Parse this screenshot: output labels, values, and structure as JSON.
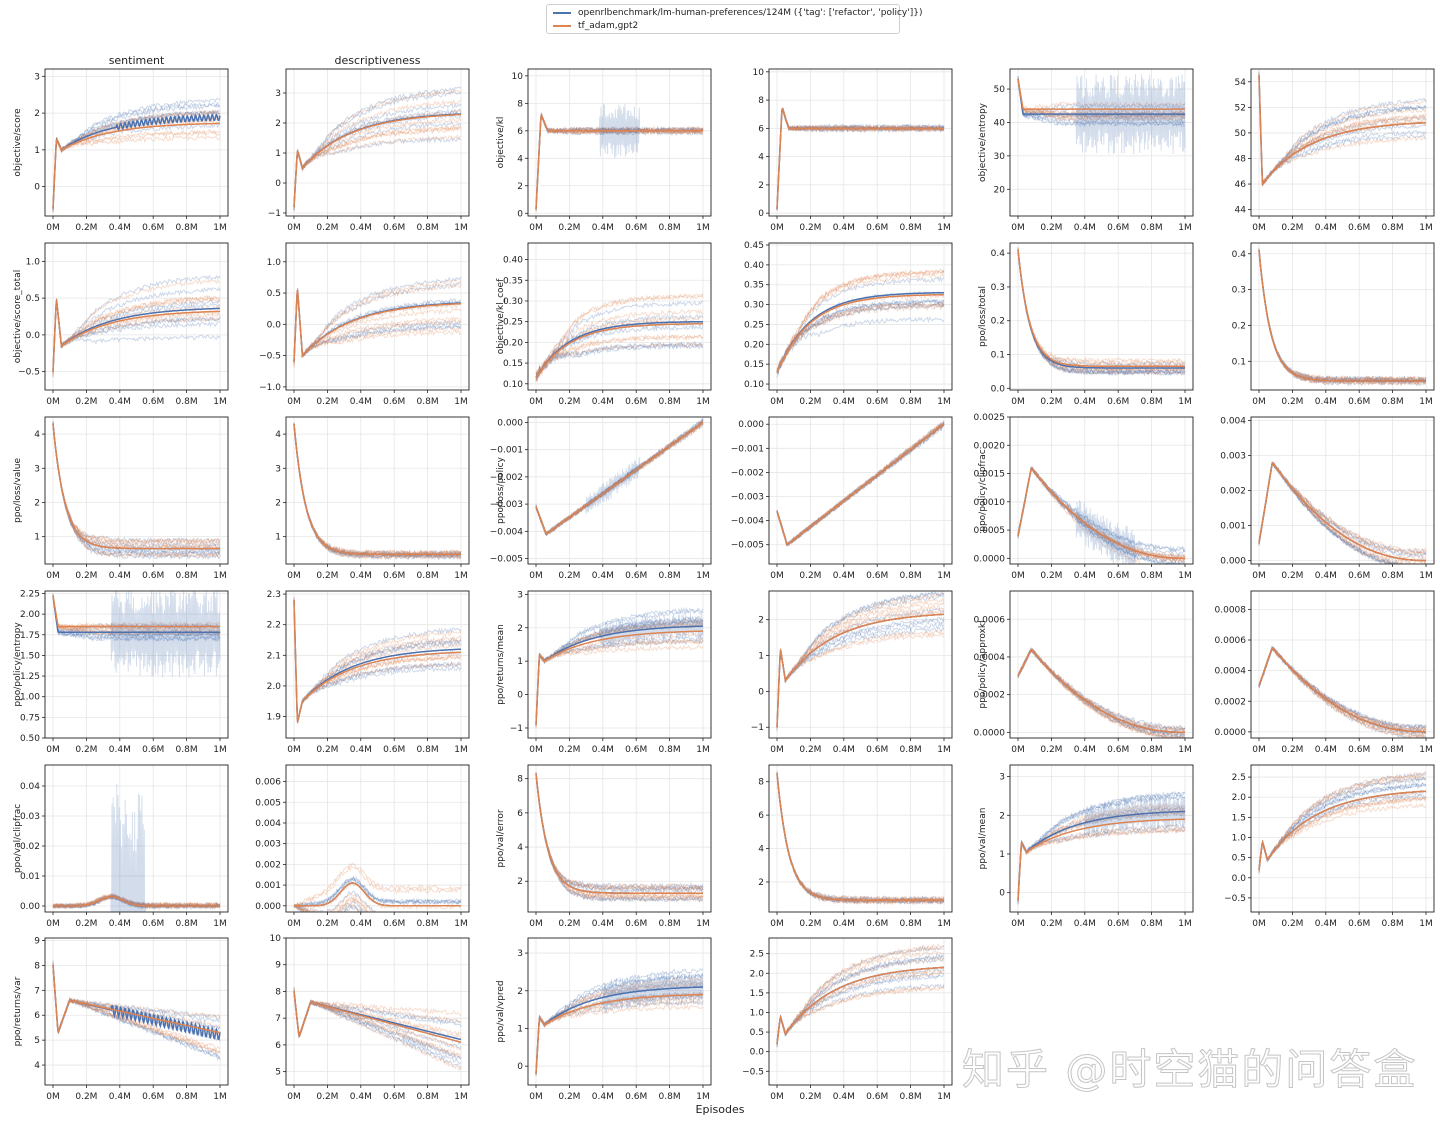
{
  "legend": [
    {
      "label": "openrlbenchmark/lm-human-preferences/124M ({'tag': ['refactor', 'policy']})",
      "color": "#4c72b0"
    },
    {
      "label": "tf_adam,gpt2",
      "color": "#dd8452"
    }
  ],
  "watermark": "知乎 @时空猫的问答盒",
  "colors": {
    "blue": "#4c72b0",
    "orange": "#dd8452",
    "grid": "#e6e6e6"
  },
  "chart_data": {
    "type": "line",
    "xlabel": "Episodes",
    "x_ticks": [
      "0M",
      "0.2M",
      "0.4M",
      "0.6M",
      "0.8M",
      "1M"
    ],
    "x_tick_values": [
      0,
      0.2,
      0.4,
      0.6,
      0.8,
      1.0
    ],
    "xlim": [
      0,
      1.0
    ],
    "grid": true,
    "legend_position": "top-center",
    "series_names": [
      "openrlbenchmark/lm-human-preferences/124M ({'tag': ['refactor', 'policy']})",
      "tf_adam,gpt2"
    ],
    "panels": [
      {
        "title": "sentiment",
        "ylabel": "objective/score",
        "ylim": [
          -0.8,
          3.2
        ],
        "yticks": [
          "0",
          "1",
          "2",
          "3"
        ],
        "ytick_values": [
          0,
          1,
          2,
          3
        ],
        "shape": "rise",
        "start": -0.6,
        "peak": 1.3,
        "dip": 1.0,
        "end_blue": 1.88,
        "end_orange": 1.72,
        "spread": 0.5,
        "blue_osc": 0.08,
        "osc_from": 0.38
      },
      {
        "title": "descriptiveness",
        "ylabel": "",
        "ylim": [
          -1.1,
          3.8
        ],
        "yticks": [
          "−1",
          "0",
          "1",
          "2",
          "3"
        ],
        "ytick_values": [
          -1,
          0,
          1,
          2,
          3
        ],
        "shape": "rise",
        "start": -0.8,
        "peak": 1.1,
        "dip": 0.5,
        "end_blue": 2.3,
        "end_orange": 2.28,
        "spread": 0.85
      },
      {
        "title": "",
        "ylabel": "objective/kl",
        "ylim": [
          -0.2,
          10.5
        ],
        "yticks": [
          "0",
          "2",
          "4",
          "6",
          "8",
          "10"
        ],
        "ytick_values": [
          0,
          2,
          4,
          6,
          8,
          10
        ],
        "shape": "spike_flat",
        "start": 0.3,
        "peak": 7.2,
        "end_blue": 6.0,
        "end_orange": 6.0,
        "spread": 0.15,
        "blue_noise": 2.0,
        "osc_from": 0.38,
        "osc_to": 0.62
      },
      {
        "title": "",
        "ylabel": "",
        "ylim": [
          -0.2,
          10.2
        ],
        "yticks": [
          "0",
          "2",
          "4",
          "6",
          "8",
          "10"
        ],
        "ytick_values": [
          0,
          2,
          4,
          6,
          8,
          10
        ],
        "shape": "spike_flat",
        "start": 0.3,
        "peak": 7.5,
        "end_blue": 6.0,
        "end_orange": 6.0,
        "spread": 0.15
      },
      {
        "title": "",
        "ylabel": "objective/entropy",
        "ylim": [
          12,
          56
        ],
        "yticks": [
          "20",
          "30",
          "40",
          "50"
        ],
        "ytick_values": [
          20,
          30,
          40,
          50
        ],
        "shape": "drop_flat",
        "start": 53,
        "peak": 53,
        "end_blue": 42.5,
        "end_orange": 44,
        "spread": 3,
        "blue_noise": 12,
        "osc_from": 0.35
      },
      {
        "title": "",
        "ylabel": "",
        "ylim": [
          43.5,
          55
        ],
        "yticks": [
          "44",
          "46",
          "48",
          "50",
          "52",
          "54"
        ],
        "ytick_values": [
          44,
          46,
          48,
          50,
          52,
          54
        ],
        "shape": "rise",
        "start": 54.5,
        "peak": 46,
        "dip": 46.5,
        "end_blue": 50.8,
        "end_orange": 50.8,
        "spread": 2.0
      },
      {
        "title": "",
        "ylabel": "objective/score_total",
        "ylim": [
          -0.75,
          1.25
        ],
        "yticks": [
          "−0.5",
          "0.0",
          "0.5",
          "1.0"
        ],
        "ytick_values": [
          -0.5,
          0,
          0.5,
          1.0
        ],
        "shape": "rise",
        "start": -0.5,
        "peak": 0.5,
        "dip": -0.15,
        "end_blue": 0.36,
        "end_orange": 0.32,
        "spread": 0.45
      },
      {
        "title": "",
        "ylabel": "",
        "ylim": [
          -1.05,
          1.3
        ],
        "yticks": [
          "−1.0",
          "−0.5",
          "0.0",
          "0.5",
          "1.0"
        ],
        "ytick_values": [
          -1,
          -0.5,
          0,
          0.5,
          1.0
        ],
        "shape": "rise",
        "start": -0.6,
        "peak": 0.6,
        "dip": -0.5,
        "end_blue": 0.34,
        "end_orange": 0.33,
        "spread": 0.5
      },
      {
        "title": "",
        "ylabel": "objective/kl_coef",
        "ylim": [
          0.085,
          0.44
        ],
        "yticks": [
          "0.10",
          "0.15",
          "0.20",
          "0.25",
          "0.30",
          "0.35",
          "0.40"
        ],
        "ytick_values": [
          0.1,
          0.15,
          0.2,
          0.25,
          0.3,
          0.35,
          0.4
        ],
        "shape": "saturate",
        "start": 0.115,
        "end_blue": 0.25,
        "end_orange": 0.245,
        "spread": 0.08
      },
      {
        "title": "",
        "ylabel": "",
        "ylim": [
          0.085,
          0.455
        ],
        "yticks": [
          "0.10",
          "0.15",
          "0.20",
          "0.25",
          "0.30",
          "0.35",
          "0.40",
          "0.45"
        ],
        "ytick_values": [
          0.1,
          0.15,
          0.2,
          0.25,
          0.3,
          0.35,
          0.4,
          0.45
        ],
        "shape": "saturate",
        "start": 0.13,
        "end_blue": 0.33,
        "end_orange": 0.325,
        "spread": 0.07
      },
      {
        "title": "",
        "ylabel": "ppo/loss/total",
        "ylim": [
          -0.005,
          0.43
        ],
        "yticks": [
          "0.0",
          "0.1",
          "0.2",
          "0.3",
          "0.4"
        ],
        "ytick_values": [
          0,
          0.1,
          0.2,
          0.3,
          0.4
        ],
        "shape": "decay",
        "start": 0.41,
        "end_blue": 0.06,
        "end_orange": 0.065,
        "spread": 0.02
      },
      {
        "title": "",
        "ylabel": "",
        "ylim": [
          0.02,
          0.43
        ],
        "yticks": [
          "0.1",
          "0.2",
          "0.3",
          "0.4"
        ],
        "ytick_values": [
          0.1,
          0.2,
          0.3,
          0.4
        ],
        "shape": "decay",
        "start": 0.41,
        "end_blue": 0.045,
        "end_orange": 0.045,
        "spread": 0.008
      },
      {
        "title": "",
        "ylabel": "ppo/loss/value",
        "ylim": [
          0.2,
          4.5
        ],
        "yticks": [
          "1",
          "2",
          "3",
          "4"
        ],
        "ytick_values": [
          1,
          2,
          3,
          4
        ],
        "shape": "decay",
        "start": 4.3,
        "end_blue": 0.65,
        "end_orange": 0.65,
        "spread": 0.25
      },
      {
        "title": "",
        "ylabel": "",
        "ylim": [
          0.2,
          4.5
        ],
        "yticks": [
          "1",
          "2",
          "3",
          "4"
        ],
        "ytick_values": [
          1,
          2,
          3,
          4
        ],
        "shape": "decay",
        "start": 4.3,
        "end_blue": 0.48,
        "end_orange": 0.48,
        "spread": 0.08
      },
      {
        "title": "",
        "ylabel": "ppo/loss/policy",
        "ylim": [
          -0.0052,
          0.0002
        ],
        "yticks": [
          "−0.005",
          "−0.004",
          "−0.003",
          "−0.002",
          "−0.001",
          "0.000"
        ],
        "ytick_values": [
          -0.005,
          -0.004,
          -0.003,
          -0.002,
          -0.001,
          0
        ],
        "shape": "linear_up",
        "start": -0.0031,
        "peak": -0.0041,
        "end_blue": 0.0,
        "end_orange": 0.0,
        "spread": 0.0001,
        "blue_noise": 0.0004,
        "osc_from": 0.3,
        "osc_to": 0.62
      },
      {
        "title": "",
        "ylabel": "",
        "ylim": [
          -0.0058,
          0.0003
        ],
        "yticks": [
          "−0.005",
          "−0.004",
          "−0.003",
          "−0.002",
          "−0.001",
          "0.000"
        ],
        "ytick_values": [
          -0.005,
          -0.004,
          -0.003,
          -0.002,
          -0.001,
          0
        ],
        "shape": "linear_up",
        "start": -0.0036,
        "peak": -0.005,
        "end_blue": 0.0,
        "end_orange": 0.0,
        "spread": 0.0001
      },
      {
        "title": "",
        "ylabel": "ppo/policy/clipfrac",
        "ylim": [
          -0.0001,
          0.0025
        ],
        "yticks": [
          "0.0000",
          "0.0005",
          "0.0010",
          "0.0015",
          "0.0020",
          "0.0025"
        ],
        "ytick_values": [
          0,
          0.0005,
          0.001,
          0.0015,
          0.002,
          0.0025
        ],
        "shape": "hump",
        "start": 0.0004,
        "peak": 0.0016,
        "end_blue": 0.0,
        "end_orange": 0.0,
        "spread": 0.0002,
        "blue_noise": 0.0004,
        "osc_from": 0.35,
        "osc_to": 0.7
      },
      {
        "title": "",
        "ylabel": "",
        "ylim": [
          -0.0001,
          0.0041
        ],
        "yticks": [
          "0.000",
          "0.001",
          "0.002",
          "0.003",
          "0.004"
        ],
        "ytick_values": [
          0,
          0.001,
          0.002,
          0.003,
          0.004
        ],
        "shape": "hump",
        "start": 0.0005,
        "peak": 0.0028,
        "end_blue": 0.0,
        "end_orange": 0.0,
        "spread": 0.0003
      },
      {
        "title": "",
        "ylabel": "ppo/policy/entropy",
        "ylim": [
          0.5,
          2.28
        ],
        "yticks": [
          "0.50",
          "0.75",
          "1.00",
          "1.25",
          "1.50",
          "1.75",
          "2.00",
          "2.25"
        ],
        "ytick_values": [
          0.5,
          0.75,
          1.0,
          1.25,
          1.5,
          1.75,
          2.0,
          2.25
        ],
        "shape": "drop_flat",
        "start": 2.22,
        "peak": 2.22,
        "end_blue": 1.78,
        "end_orange": 1.85,
        "spread": 0.08,
        "blue_noise": 0.55,
        "osc_from": 0.35
      },
      {
        "title": "",
        "ylabel": "",
        "ylim": [
          1.83,
          2.31
        ],
        "yticks": [
          "1.9",
          "2.0",
          "2.1",
          "2.2",
          "2.3"
        ],
        "ytick_values": [
          1.9,
          2.0,
          2.1,
          2.2,
          2.3
        ],
        "shape": "rise",
        "start": 2.28,
        "peak": 1.88,
        "dip": 1.95,
        "end_blue": 2.12,
        "end_orange": 2.11,
        "spread": 0.07
      },
      {
        "title": "",
        "ylabel": "ppo/returns/mean",
        "ylim": [
          -1.3,
          3.1
        ],
        "yticks": [
          "−1",
          "0",
          "1",
          "2",
          "3"
        ],
        "ytick_values": [
          -1,
          0,
          1,
          2,
          3
        ],
        "shape": "rise",
        "start": -0.9,
        "peak": 1.2,
        "dip": 1.0,
        "end_blue": 2.05,
        "end_orange": 1.9,
        "spread": 0.5,
        "blue_noise": 0.4,
        "osc_from": 0.38
      },
      {
        "title": "",
        "ylabel": "",
        "ylim": [
          -1.3,
          2.8
        ],
        "yticks": [
          "−1",
          "0",
          "1",
          "2"
        ],
        "ytick_values": [
          -1,
          0,
          1,
          2
        ],
        "shape": "rise",
        "start": -1.0,
        "peak": 1.2,
        "dip": 0.3,
        "end_blue": 2.15,
        "end_orange": 2.15,
        "spread": 0.6
      },
      {
        "title": "",
        "ylabel": "ppo/policy/approxkl",
        "ylim": [
          -3e-05,
          0.00075
        ],
        "yticks": [
          "0.0000",
          "0.0002",
          "0.0004",
          "0.0006"
        ],
        "ytick_values": [
          0,
          0.0002,
          0.0004,
          0.0006
        ],
        "shape": "hump",
        "start": 0.0003,
        "peak": 0.00044,
        "end_blue": 0.0,
        "end_orange": 0.0,
        "spread": 3e-05
      },
      {
        "title": "",
        "ylabel": "",
        "ylim": [
          -4e-05,
          0.00092
        ],
        "yticks": [
          "0.0000",
          "0.0002",
          "0.0004",
          "0.0006",
          "0.0008"
        ],
        "ytick_values": [
          0,
          0.0002,
          0.0004,
          0.0006,
          0.0008
        ],
        "shape": "hump",
        "start": 0.0003,
        "peak": 0.00055,
        "end_blue": 0.0,
        "end_orange": 0.0,
        "spread": 4e-05
      },
      {
        "title": "",
        "ylabel": "ppo/val/clipfrac",
        "ylim": [
          -0.002,
          0.047
        ],
        "yticks": [
          "0.00",
          "0.01",
          "0.02",
          "0.03",
          "0.04"
        ],
        "ytick_values": [
          0,
          0.01,
          0.02,
          0.03,
          0.04
        ],
        "shape": "bump_low",
        "start": 0.0,
        "peak": 0.003,
        "end_blue": 0.0,
        "end_orange": 0.0,
        "spread": 0.0005,
        "blue_noise": 0.04,
        "osc_from": 0.35,
        "osc_to": 0.55
      },
      {
        "title": "",
        "ylabel": "",
        "ylim": [
          -0.0003,
          0.0068
        ],
        "yticks": [
          "0.000",
          "0.001",
          "0.002",
          "0.003",
          "0.004",
          "0.005",
          "0.006"
        ],
        "ytick_values": [
          0,
          0.001,
          0.002,
          0.003,
          0.004,
          0.005,
          0.006
        ],
        "shape": "bump_low",
        "start": 0.0,
        "peak": 0.0011,
        "end_blue": 0.0,
        "end_orange": 0.0,
        "spread": 0.0012
      },
      {
        "title": "",
        "ylabel": "ppo/val/error",
        "ylim": [
          0.2,
          8.8
        ],
        "yticks": [
          "2",
          "4",
          "6",
          "8"
        ],
        "ytick_values": [
          2,
          4,
          6,
          8
        ],
        "shape": "decay",
        "start": 8.3,
        "end_blue": 1.3,
        "end_orange": 1.3,
        "spread": 0.45
      },
      {
        "title": "",
        "ylabel": "",
        "ylim": [
          0.2,
          9.0
        ],
        "yticks": [
          "2",
          "4",
          "6",
          "8"
        ],
        "ytick_values": [
          2,
          4,
          6,
          8
        ],
        "shape": "decay",
        "start": 8.5,
        "end_blue": 0.9,
        "end_orange": 0.9,
        "spread": 0.12
      },
      {
        "title": "",
        "ylabel": "ppo/val/mean",
        "ylim": [
          -0.5,
          3.3
        ],
        "yticks": [
          "0",
          "1",
          "2",
          "3"
        ],
        "ytick_values": [
          0,
          1,
          2,
          3
        ],
        "shape": "rise",
        "start": -0.2,
        "peak": 1.3,
        "dip": 1.05,
        "end_blue": 2.1,
        "end_orange": 1.9,
        "spread": 0.5,
        "blue_noise": 0.45,
        "osc_from": 0.4
      },
      {
        "title": "",
        "ylabel": "",
        "ylim": [
          -0.85,
          2.8
        ],
        "yticks": [
          "−0.5",
          "0.0",
          "0.5",
          "1.0",
          "1.5",
          "2.0",
          "2.5"
        ],
        "ytick_values": [
          -0.5,
          0,
          0.5,
          1.0,
          1.5,
          2.0,
          2.5
        ],
        "shape": "rise",
        "start": 0.2,
        "peak": 0.9,
        "dip": 0.45,
        "end_blue": 2.15,
        "end_orange": 2.15,
        "spread": 0.5
      },
      {
        "title": "",
        "ylabel": "ppo/returns/var",
        "ylim": [
          3.2,
          9.1
        ],
        "yticks": [
          "4",
          "5",
          "6",
          "7",
          "8",
          "9"
        ],
        "ytick_values": [
          4,
          5,
          6,
          7,
          8,
          9
        ],
        "shape": "hump_mid",
        "start": 8.0,
        "peak": 6.6,
        "dip": 5.3,
        "end_blue": 5.2,
        "end_orange": 5.3,
        "spread": 1.1,
        "blue_osc": 0.2,
        "osc_from": 0.35
      },
      {
        "title": "",
        "ylabel": "",
        "ylim": [
          4.5,
          10.0
        ],
        "yticks": [
          "5",
          "6",
          "7",
          "8",
          "9",
          "10"
        ],
        "ytick_values": [
          5,
          6,
          7,
          8,
          9,
          10
        ],
        "shape": "hump_mid",
        "start": 8.0,
        "peak": 7.6,
        "dip": 6.3,
        "end_blue": 6.2,
        "end_orange": 6.1,
        "spread": 1.1
      },
      {
        "title": "",
        "ylabel": "ppo/val/vpred",
        "ylim": [
          -0.5,
          3.4
        ],
        "yticks": [
          "0",
          "1",
          "2",
          "3"
        ],
        "ytick_values": [
          0,
          1,
          2,
          3
        ],
        "shape": "rise",
        "start": -0.2,
        "peak": 1.3,
        "dip": 1.1,
        "end_blue": 2.1,
        "end_orange": 1.9,
        "spread": 0.45,
        "blue_noise": 0.45,
        "osc_from": 0.4
      },
      {
        "title": "",
        "ylabel": "",
        "ylim": [
          -0.85,
          2.9
        ],
        "yticks": [
          "−0.5",
          "0.0",
          "0.5",
          "1.0",
          "1.5",
          "2.0",
          "2.5"
        ],
        "ytick_values": [
          -0.5,
          0,
          0.5,
          1.0,
          1.5,
          2.0,
          2.5
        ],
        "shape": "rise",
        "start": 0.2,
        "peak": 0.9,
        "dip": 0.45,
        "end_blue": 2.15,
        "end_orange": 2.15,
        "spread": 0.55
      }
    ]
  }
}
